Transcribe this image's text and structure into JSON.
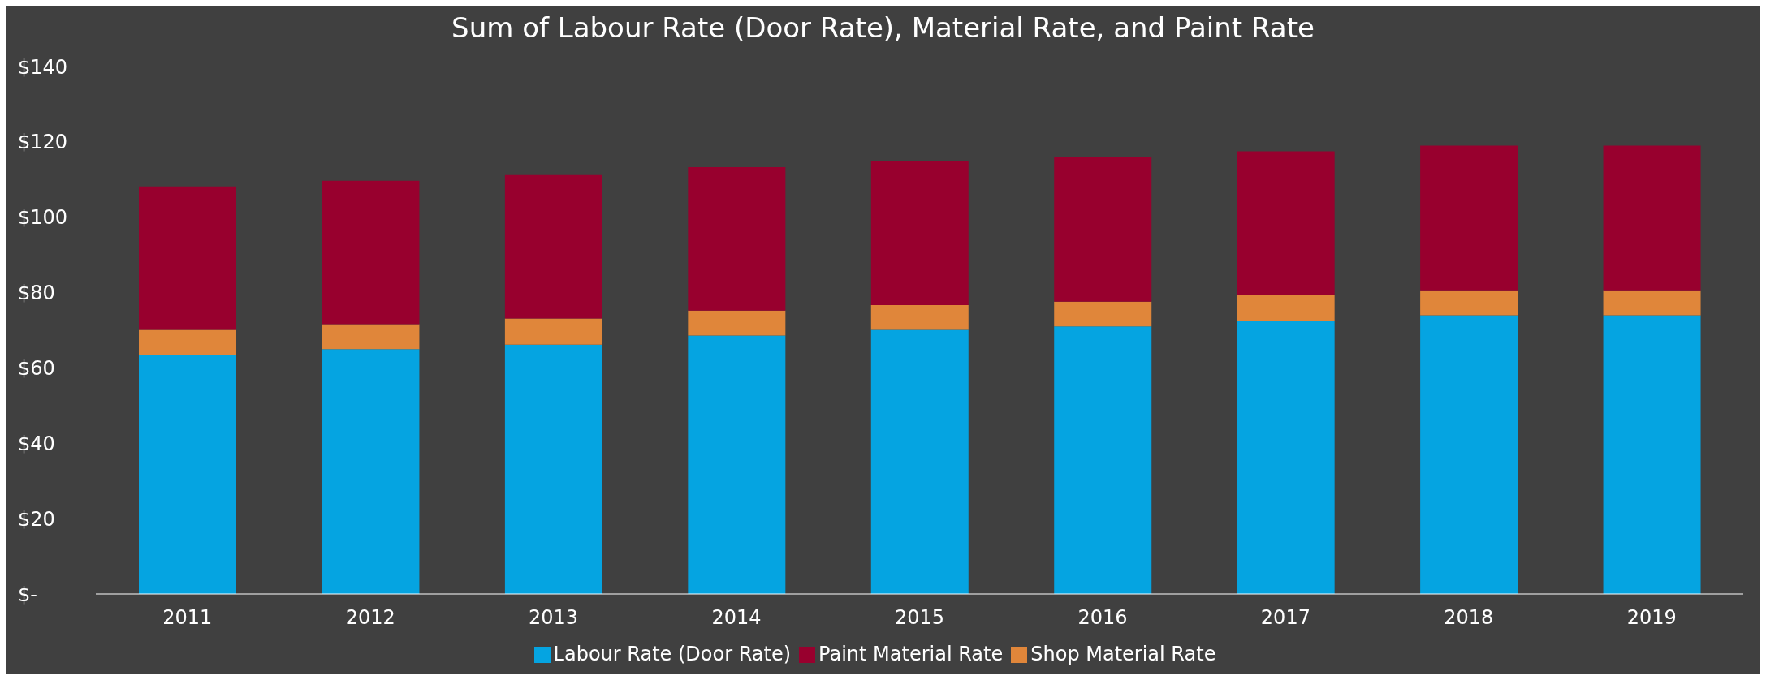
{
  "chart_data": {
    "type": "bar",
    "title": "Sum of Labour Rate (Door Rate), Material Rate, and Paint Rate",
    "categories": [
      "2011",
      "2012",
      "2013",
      "2014",
      "2015",
      "2016",
      "2017",
      "2018",
      "2019"
    ],
    "stacked": true,
    "series": [
      {
        "name": "Labour Rate (Door Rate)",
        "color": "#05a4e1",
        "values": [
          63.3,
          65.0,
          66.2,
          68.6,
          70.1,
          71.0,
          72.5,
          74.0,
          74.0
        ]
      },
      {
        "name": "Shop Material Rate",
        "color": "#e0863a",
        "values": [
          6.8,
          6.6,
          6.9,
          6.6,
          6.6,
          6.6,
          6.9,
          6.6,
          6.6
        ]
      },
      {
        "name": "Paint Material Rate",
        "color": "#98002e",
        "values": [
          38.1,
          38.1,
          38.1,
          38.1,
          38.1,
          38.4,
          38.1,
          38.4,
          38.4
        ]
      }
    ],
    "ylim": [
      0,
      140
    ],
    "yticks": [
      {
        "value": 0,
        "label": "$-"
      },
      {
        "value": 20,
        "label": "$20"
      },
      {
        "value": 40,
        "label": "$40"
      },
      {
        "value": 60,
        "label": "$60"
      },
      {
        "value": 80,
        "label": "$80"
      },
      {
        "value": 100,
        "label": "$100"
      },
      {
        "value": 120,
        "label": "$120"
      },
      {
        "value": 140,
        "label": "$140"
      }
    ],
    "grid": false,
    "legend": "bottom"
  }
}
